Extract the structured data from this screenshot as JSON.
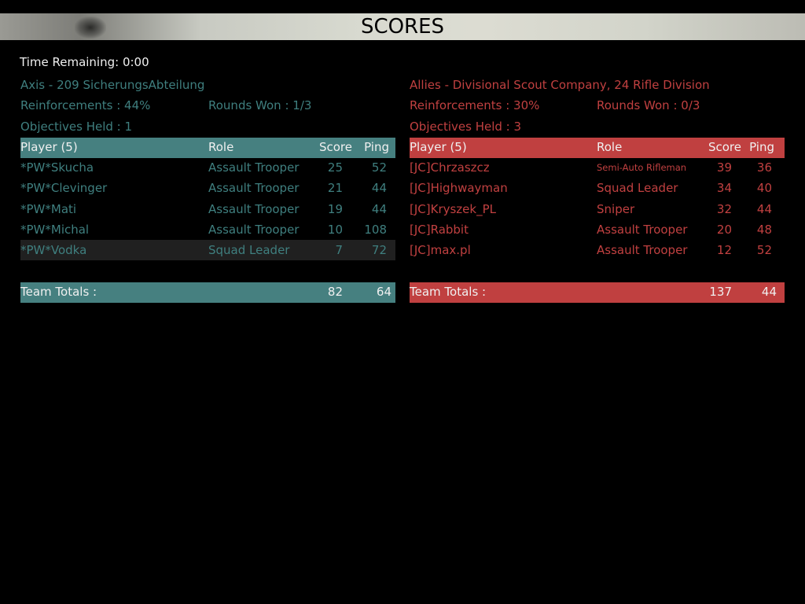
{
  "title": "SCORES",
  "time_remaining": "Time Remaining: 0:00",
  "colors": {
    "axis": "#3f7f7f",
    "axis_bar": "#468080",
    "allies": "#c04040"
  },
  "axis": {
    "name": "Axis - 209 SicherungsAbteilung",
    "reinforcements": "Reinforcements : 44%",
    "rounds_won": "Rounds Won : 1/3",
    "objectives": "Objectives Held : 1",
    "headers": {
      "player": "Player (5)",
      "role": "Role",
      "score": "Score",
      "ping": "Ping"
    },
    "players": [
      {
        "name": "*PW*Skucha",
        "role": "Assault Trooper",
        "score": "25",
        "ping": "52"
      },
      {
        "name": "*PW*Clevinger",
        "role": "Assault Trooper",
        "score": "21",
        "ping": "44"
      },
      {
        "name": "*PW*Mati",
        "role": "Assault Trooper",
        "score": "19",
        "ping": "44"
      },
      {
        "name": "*PW*Michal",
        "role": "Assault Trooper",
        "score": "10",
        "ping": "108"
      },
      {
        "name": "*PW*Vodka",
        "role": "Squad Leader",
        "score": "7",
        "ping": "72"
      }
    ],
    "totals": {
      "label": "Team Totals :",
      "score": "82",
      "ping": "64"
    }
  },
  "allies": {
    "name": "Allies - Divisional Scout Company, 24 Rifle Division",
    "reinforcements": "Reinforcements : 30%",
    "rounds_won": "Rounds Won : 0/3",
    "objectives": "Objectives Held : 3",
    "headers": {
      "player": "Player (5)",
      "role": "Role",
      "score": "Score",
      "ping": "Ping"
    },
    "players": [
      {
        "name": "[JC]Chrzaszcz",
        "role": "Semi-Auto Rifleman",
        "score": "39",
        "ping": "36"
      },
      {
        "name": "[JC]Highwayman",
        "role": "Squad Leader",
        "score": "34",
        "ping": "40"
      },
      {
        "name": "[JC]Kryszek_PL",
        "role": "Sniper",
        "score": "32",
        "ping": "44"
      },
      {
        "name": "[JC]Rabbit",
        "role": "Assault Trooper",
        "score": "20",
        "ping": "48"
      },
      {
        "name": "[JC]max.pl",
        "role": "Assault Trooper",
        "score": "12",
        "ping": "52"
      }
    ],
    "totals": {
      "label": "Team Totals :",
      "score": "137",
      "ping": "44"
    }
  }
}
